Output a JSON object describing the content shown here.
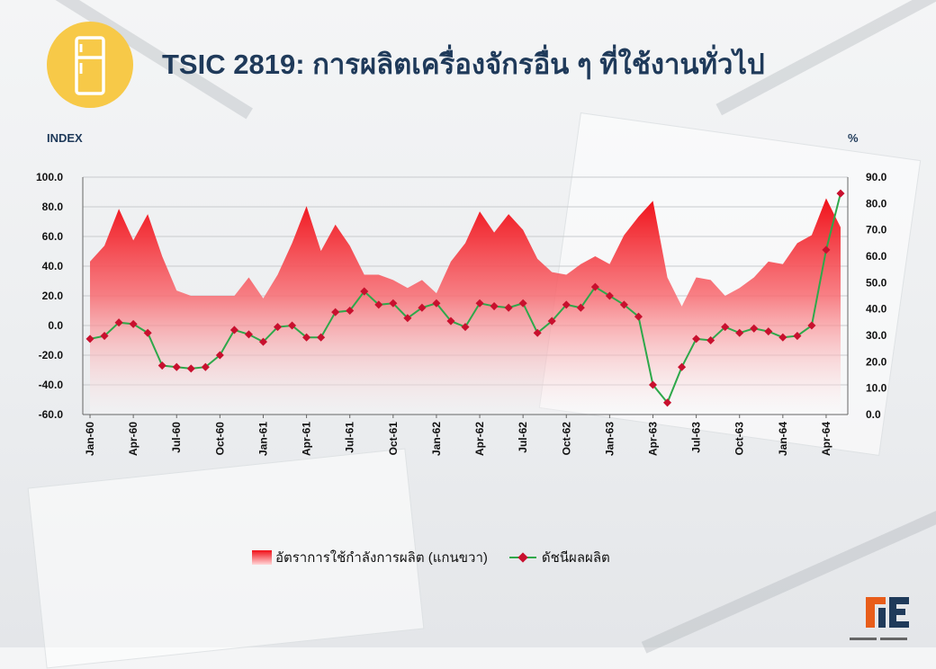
{
  "header": {
    "title": "TSIC 2819: การผลิตเครื่องจักรอื่น ๆ ที่ใช้งานทั่วไป",
    "icon": "refrigerator-icon",
    "icon_color": "#f7c948",
    "title_color": "#1f3a5a"
  },
  "axis_units": {
    "left": "INDEX",
    "right": "%"
  },
  "legend": {
    "area_label": "อัตราการใช้กำลังการผลิต (แกนขวา)",
    "line_label": "ดัชนีผลผลิต"
  },
  "chart_data": {
    "type": "line",
    "subtype": "combo area + line, dual y axis",
    "months": [
      "Jan-60",
      "Feb-60",
      "Mar-60",
      "Apr-60",
      "May-60",
      "Jun-60",
      "Jul-60",
      "Aug-60",
      "Sep-60",
      "Oct-60",
      "Nov-60",
      "Dec-60",
      "Jan-61",
      "Feb-61",
      "Mar-61",
      "Apr-61",
      "May-61",
      "Jun-61",
      "Jul-61",
      "Aug-61",
      "Sep-61",
      "Oct-61",
      "Nov-61",
      "Dec-61",
      "Jan-62",
      "Feb-62",
      "Mar-62",
      "Apr-62",
      "May-62",
      "Jun-62",
      "Jul-62",
      "Aug-62",
      "Sep-62",
      "Oct-62",
      "Nov-62",
      "Dec-62",
      "Jan-63",
      "Feb-63",
      "Mar-63",
      "Apr-63",
      "May-63",
      "Jun-63",
      "Jul-63",
      "Aug-63",
      "Sep-63",
      "Oct-63",
      "Nov-63",
      "Dec-63",
      "Jan-64",
      "Feb-64",
      "Mar-64",
      "Apr-64",
      "May-64"
    ],
    "x_tick_labels": [
      "Jan-60",
      "Apr-60",
      "Jul-60",
      "Oct-60",
      "Jan-61",
      "Apr-61",
      "Jul-61",
      "Oct-61",
      "Jan-62",
      "Apr-62",
      "Jul-62",
      "Oct-62",
      "Jan-63",
      "Apr-63",
      "Jul-63",
      "Oct-63",
      "Jan-64",
      "Apr-64"
    ],
    "left_axis": {
      "ylim": [
        -60,
        100
      ],
      "ticks": [
        "100.0",
        "80.0",
        "60.0",
        "40.0",
        "20.0",
        "0.0",
        "-20.0",
        "-40.0",
        "-60.0"
      ]
    },
    "right_axis": {
      "ylim": [
        0,
        90
      ],
      "ticks": [
        "90.0",
        "80.0",
        "70.0",
        "60.0",
        "50.0",
        "40.0",
        "30.0",
        "20.0",
        "10.0",
        "0.0"
      ]
    },
    "grid": "horizontal",
    "legend_position": "bottom",
    "series": [
      {
        "name": "อัตราการใช้กำลังการผลิต (แกนขวา)",
        "type": "area",
        "axis": "right",
        "color": "#f01018",
        "values": [
          58,
          64,
          78,
          66,
          76,
          60,
          47,
          45,
          45,
          45,
          45,
          52,
          44,
          53,
          65,
          79,
          62,
          72,
          64,
          53,
          53,
          51,
          48,
          51,
          46,
          58,
          65,
          77,
          69,
          76,
          70,
          59,
          54,
          53,
          57,
          60,
          57,
          68,
          75,
          81,
          52,
          41,
          52,
          51,
          45,
          48,
          52,
          58,
          57,
          65,
          68,
          82,
          71
        ]
      },
      {
        "name": "ดัชนีผลผลิต",
        "type": "line",
        "axis": "left",
        "color": "#2ea84a",
        "marker_color": "#c8102e",
        "values": [
          -9,
          -7,
          2,
          1,
          -5,
          -27,
          -28,
          -29,
          -28,
          -20,
          -3,
          -6,
          -11,
          -1,
          0,
          -8,
          -8,
          9,
          10,
          23,
          14,
          15,
          5,
          12,
          15,
          3,
          -1,
          15,
          13,
          12,
          15,
          -5,
          3,
          14,
          12,
          26,
          20,
          14,
          6,
          -40,
          -52,
          -28,
          -9,
          -10,
          -1,
          -5,
          -2,
          -4,
          -8,
          -7,
          0,
          51,
          89
        ]
      }
    ]
  }
}
